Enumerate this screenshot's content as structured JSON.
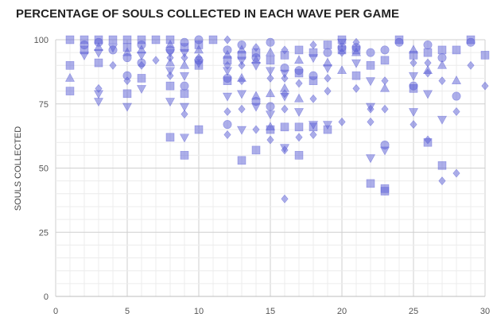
{
  "chart_data": {
    "type": "scatter",
    "title": "PERCENTAGE OF SOULS COLLECTED IN EACH WAVE PER GAME",
    "xlabel": "",
    "ylabel": "SOULS COLLECTED",
    "xlim": [
      0,
      30
    ],
    "ylim": [
      0,
      100
    ],
    "x_ticks": [
      0,
      5,
      10,
      15,
      20,
      25,
      30
    ],
    "y_ticks": [
      0,
      25,
      50,
      75,
      100
    ],
    "grid": true,
    "marker_color": "#5b5fd6",
    "marker_shapes": [
      "square",
      "circle",
      "triangle-up",
      "triangle-down",
      "diamond"
    ],
    "points": [
      {
        "x": 1,
        "y": 100,
        "shape": "square"
      },
      {
        "x": 1,
        "y": 90,
        "shape": "square"
      },
      {
        "x": 1,
        "y": 85,
        "shape": "triangle-up"
      },
      {
        "x": 1,
        "y": 80,
        "shape": "square"
      },
      {
        "x": 2,
        "y": 100,
        "shape": "square"
      },
      {
        "x": 2,
        "y": 98,
        "shape": "circle"
      },
      {
        "x": 2,
        "y": 96,
        "shape": "square"
      },
      {
        "x": 2,
        "y": 94,
        "shape": "triangle-down"
      },
      {
        "x": 3,
        "y": 100,
        "shape": "square"
      },
      {
        "x": 3,
        "y": 99,
        "shape": "circle"
      },
      {
        "x": 3,
        "y": 97,
        "shape": "triangle-up"
      },
      {
        "x": 3,
        "y": 95,
        "shape": "triangle-down"
      },
      {
        "x": 3,
        "y": 91,
        "shape": "square"
      },
      {
        "x": 3,
        "y": 81,
        "shape": "diamond"
      },
      {
        "x": 3,
        "y": 79,
        "shape": "triangle-down"
      },
      {
        "x": 3,
        "y": 76,
        "shape": "triangle-down"
      },
      {
        "x": 4,
        "y": 100,
        "shape": "square"
      },
      {
        "x": 4,
        "y": 97,
        "shape": "triangle-down"
      },
      {
        "x": 4,
        "y": 96,
        "shape": "circle"
      },
      {
        "x": 4,
        "y": 90,
        "shape": "diamond"
      },
      {
        "x": 5,
        "y": 100,
        "shape": "square"
      },
      {
        "x": 5,
        "y": 97,
        "shape": "square"
      },
      {
        "x": 5,
        "y": 95,
        "shape": "triangle-up"
      },
      {
        "x": 5,
        "y": 93,
        "shape": "circle"
      },
      {
        "x": 5,
        "y": 86,
        "shape": "circle"
      },
      {
        "x": 5,
        "y": 84,
        "shape": "diamond"
      },
      {
        "x": 5,
        "y": 79,
        "shape": "square"
      },
      {
        "x": 5,
        "y": 74,
        "shape": "triangle-down"
      },
      {
        "x": 6,
        "y": 100,
        "shape": "square"
      },
      {
        "x": 6,
        "y": 98,
        "shape": "circle"
      },
      {
        "x": 6,
        "y": 96,
        "shape": "triangle-up"
      },
      {
        "x": 6,
        "y": 94,
        "shape": "triangle-down"
      },
      {
        "x": 6,
        "y": 91,
        "shape": "circle"
      },
      {
        "x": 6,
        "y": 90,
        "shape": "diamond"
      },
      {
        "x": 6,
        "y": 85,
        "shape": "square"
      },
      {
        "x": 6,
        "y": 81,
        "shape": "triangle-down"
      },
      {
        "x": 7,
        "y": 100,
        "shape": "square"
      },
      {
        "x": 7,
        "y": 92,
        "shape": "diamond"
      },
      {
        "x": 8,
        "y": 100,
        "shape": "square"
      },
      {
        "x": 8,
        "y": 98,
        "shape": "triangle-up"
      },
      {
        "x": 8,
        "y": 96,
        "shape": "circle"
      },
      {
        "x": 8,
        "y": 95,
        "shape": "triangle-down"
      },
      {
        "x": 8,
        "y": 93,
        "shape": "diamond"
      },
      {
        "x": 8,
        "y": 91,
        "shape": "triangle-up"
      },
      {
        "x": 8,
        "y": 88,
        "shape": "triangle-down"
      },
      {
        "x": 8,
        "y": 86,
        "shape": "diamond"
      },
      {
        "x": 8,
        "y": 82,
        "shape": "square"
      },
      {
        "x": 8,
        "y": 76,
        "shape": "triangle-down"
      },
      {
        "x": 8,
        "y": 62,
        "shape": "square"
      },
      {
        "x": 9,
        "y": 99,
        "shape": "circle"
      },
      {
        "x": 9,
        "y": 97,
        "shape": "square"
      },
      {
        "x": 9,
        "y": 95,
        "shape": "triangle-down"
      },
      {
        "x": 9,
        "y": 93,
        "shape": "diamond"
      },
      {
        "x": 9,
        "y": 90,
        "shape": "triangle-up"
      },
      {
        "x": 9,
        "y": 86,
        "shape": "triangle-down"
      },
      {
        "x": 9,
        "y": 82,
        "shape": "circle"
      },
      {
        "x": 9,
        "y": 79,
        "shape": "square"
      },
      {
        "x": 9,
        "y": 74,
        "shape": "triangle-down"
      },
      {
        "x": 9,
        "y": 71,
        "shape": "diamond"
      },
      {
        "x": 9,
        "y": 62,
        "shape": "triangle-down"
      },
      {
        "x": 9,
        "y": 55,
        "shape": "square"
      },
      {
        "x": 10,
        "y": 100,
        "shape": "circle"
      },
      {
        "x": 10,
        "y": 98,
        "shape": "square"
      },
      {
        "x": 10,
        "y": 96,
        "shape": "triangle-up"
      },
      {
        "x": 10,
        "y": 93,
        "shape": "diamond"
      },
      {
        "x": 10,
        "y": 92,
        "shape": "circle"
      },
      {
        "x": 10,
        "y": 91,
        "shape": "triangle-down"
      },
      {
        "x": 10,
        "y": 90,
        "shape": "square"
      },
      {
        "x": 10,
        "y": 65,
        "shape": "square"
      },
      {
        "x": 11,
        "y": 100,
        "shape": "square"
      },
      {
        "x": 12,
        "y": 100,
        "shape": "diamond"
      },
      {
        "x": 12,
        "y": 96,
        "shape": "circle"
      },
      {
        "x": 12,
        "y": 94,
        "shape": "triangle-up"
      },
      {
        "x": 12,
        "y": 92,
        "shape": "square"
      },
      {
        "x": 12,
        "y": 90,
        "shape": "diamond"
      },
      {
        "x": 12,
        "y": 88,
        "shape": "triangle-down"
      },
      {
        "x": 12,
        "y": 85,
        "shape": "circle"
      },
      {
        "x": 12,
        "y": 84,
        "shape": "square"
      },
      {
        "x": 12,
        "y": 78,
        "shape": "triangle-down"
      },
      {
        "x": 12,
        "y": 72,
        "shape": "diamond"
      },
      {
        "x": 12,
        "y": 67,
        "shape": "circle"
      },
      {
        "x": 12,
        "y": 63,
        "shape": "diamond"
      },
      {
        "x": 13,
        "y": 98,
        "shape": "circle"
      },
      {
        "x": 13,
        "y": 96,
        "shape": "triangle-up"
      },
      {
        "x": 13,
        "y": 94,
        "shape": "square"
      },
      {
        "x": 13,
        "y": 92,
        "shape": "triangle-down"
      },
      {
        "x": 13,
        "y": 90,
        "shape": "diamond"
      },
      {
        "x": 13,
        "y": 85,
        "shape": "triangle-up"
      },
      {
        "x": 13,
        "y": 84,
        "shape": "diamond"
      },
      {
        "x": 13,
        "y": 79,
        "shape": "triangle-down"
      },
      {
        "x": 13,
        "y": 73,
        "shape": "diamond"
      },
      {
        "x": 13,
        "y": 65,
        "shape": "triangle-down"
      },
      {
        "x": 13,
        "y": 53,
        "shape": "square"
      },
      {
        "x": 14,
        "y": 97,
        "shape": "diamond"
      },
      {
        "x": 14,
        "y": 95,
        "shape": "square"
      },
      {
        "x": 14,
        "y": 93,
        "shape": "circle"
      },
      {
        "x": 14,
        "y": 92,
        "shape": "triangle-up"
      },
      {
        "x": 14,
        "y": 90,
        "shape": "triangle-down"
      },
      {
        "x": 14,
        "y": 78,
        "shape": "triangle-up"
      },
      {
        "x": 14,
        "y": 76,
        "shape": "circle"
      },
      {
        "x": 14,
        "y": 74,
        "shape": "triangle-down"
      },
      {
        "x": 14,
        "y": 65,
        "shape": "diamond"
      },
      {
        "x": 14,
        "y": 57,
        "shape": "square"
      },
      {
        "x": 15,
        "y": 99,
        "shape": "circle"
      },
      {
        "x": 15,
        "y": 95,
        "shape": "triangle-up"
      },
      {
        "x": 15,
        "y": 92,
        "shape": "square"
      },
      {
        "x": 15,
        "y": 88,
        "shape": "triangle-down"
      },
      {
        "x": 15,
        "y": 85,
        "shape": "diamond"
      },
      {
        "x": 15,
        "y": 79,
        "shape": "triangle-up"
      },
      {
        "x": 15,
        "y": 74,
        "shape": "circle"
      },
      {
        "x": 15,
        "y": 71,
        "shape": "triangle-down"
      },
      {
        "x": 15,
        "y": 66,
        "shape": "triangle-up"
      },
      {
        "x": 15,
        "y": 65,
        "shape": "square"
      },
      {
        "x": 15,
        "y": 61,
        "shape": "diamond"
      },
      {
        "x": 16,
        "y": 96,
        "shape": "diamond"
      },
      {
        "x": 16,
        "y": 94,
        "shape": "square"
      },
      {
        "x": 16,
        "y": 89,
        "shape": "circle"
      },
      {
        "x": 16,
        "y": 87,
        "shape": "triangle-down"
      },
      {
        "x": 16,
        "y": 85,
        "shape": "diamond"
      },
      {
        "x": 16,
        "y": 81,
        "shape": "triangle-up"
      },
      {
        "x": 16,
        "y": 79,
        "shape": "diamond"
      },
      {
        "x": 16,
        "y": 78,
        "shape": "triangle-down"
      },
      {
        "x": 16,
        "y": 73,
        "shape": "diamond"
      },
      {
        "x": 16,
        "y": 66,
        "shape": "square"
      },
      {
        "x": 16,
        "y": 58,
        "shape": "triangle-down"
      },
      {
        "x": 16,
        "y": 57,
        "shape": "diamond"
      },
      {
        "x": 16,
        "y": 38,
        "shape": "diamond"
      },
      {
        "x": 17,
        "y": 96,
        "shape": "square"
      },
      {
        "x": 17,
        "y": 92,
        "shape": "triangle-up"
      },
      {
        "x": 17,
        "y": 88,
        "shape": "circle"
      },
      {
        "x": 17,
        "y": 87,
        "shape": "square"
      },
      {
        "x": 17,
        "y": 83,
        "shape": "diamond"
      },
      {
        "x": 17,
        "y": 77,
        "shape": "triangle-up"
      },
      {
        "x": 17,
        "y": 72,
        "shape": "triangle-down"
      },
      {
        "x": 17,
        "y": 66,
        "shape": "square"
      },
      {
        "x": 17,
        "y": 62,
        "shape": "diamond"
      },
      {
        "x": 17,
        "y": 55,
        "shape": "square"
      },
      {
        "x": 18,
        "y": 98,
        "shape": "diamond"
      },
      {
        "x": 18,
        "y": 95,
        "shape": "square"
      },
      {
        "x": 18,
        "y": 93,
        "shape": "triangle-down"
      },
      {
        "x": 18,
        "y": 86,
        "shape": "circle"
      },
      {
        "x": 18,
        "y": 84,
        "shape": "square"
      },
      {
        "x": 18,
        "y": 77,
        "shape": "diamond"
      },
      {
        "x": 18,
        "y": 67,
        "shape": "triangle-down"
      },
      {
        "x": 18,
        "y": 66,
        "shape": "square"
      },
      {
        "x": 18,
        "y": 63,
        "shape": "diamond"
      },
      {
        "x": 19,
        "y": 98,
        "shape": "square"
      },
      {
        "x": 19,
        "y": 95,
        "shape": "circle"
      },
      {
        "x": 19,
        "y": 91,
        "shape": "triangle-up"
      },
      {
        "x": 19,
        "y": 89,
        "shape": "triangle-down"
      },
      {
        "x": 19,
        "y": 85,
        "shape": "diamond"
      },
      {
        "x": 19,
        "y": 80,
        "shape": "diamond"
      },
      {
        "x": 19,
        "y": 67,
        "shape": "triangle-down"
      },
      {
        "x": 19,
        "y": 65,
        "shape": "square"
      },
      {
        "x": 20,
        "y": 100,
        "shape": "square"
      },
      {
        "x": 20,
        "y": 99,
        "shape": "triangle-down"
      },
      {
        "x": 20,
        "y": 97,
        "shape": "circle"
      },
      {
        "x": 20,
        "y": 96,
        "shape": "square"
      },
      {
        "x": 20,
        "y": 95,
        "shape": "diamond"
      },
      {
        "x": 20,
        "y": 88,
        "shape": "triangle-up"
      },
      {
        "x": 20,
        "y": 68,
        "shape": "diamond"
      },
      {
        "x": 21,
        "y": 99,
        "shape": "diamond"
      },
      {
        "x": 21,
        "y": 97,
        "shape": "circle"
      },
      {
        "x": 21,
        "y": 96,
        "shape": "square"
      },
      {
        "x": 21,
        "y": 95,
        "shape": "triangle-up"
      },
      {
        "x": 21,
        "y": 91,
        "shape": "triangle-down"
      },
      {
        "x": 21,
        "y": 86,
        "shape": "square"
      },
      {
        "x": 21,
        "y": 81,
        "shape": "diamond"
      },
      {
        "x": 22,
        "y": 95,
        "shape": "circle"
      },
      {
        "x": 22,
        "y": 90,
        "shape": "square"
      },
      {
        "x": 22,
        "y": 84,
        "shape": "triangle-down"
      },
      {
        "x": 22,
        "y": 74,
        "shape": "triangle-down"
      },
      {
        "x": 22,
        "y": 73,
        "shape": "diamond"
      },
      {
        "x": 22,
        "y": 68,
        "shape": "diamond"
      },
      {
        "x": 22,
        "y": 54,
        "shape": "triangle-down"
      },
      {
        "x": 22,
        "y": 44,
        "shape": "square"
      },
      {
        "x": 23,
        "y": 96,
        "shape": "circle"
      },
      {
        "x": 23,
        "y": 92,
        "shape": "square"
      },
      {
        "x": 23,
        "y": 84,
        "shape": "diamond"
      },
      {
        "x": 23,
        "y": 81,
        "shape": "triangle-up"
      },
      {
        "x": 23,
        "y": 73,
        "shape": "diamond"
      },
      {
        "x": 23,
        "y": 59,
        "shape": "circle"
      },
      {
        "x": 23,
        "y": 57,
        "shape": "triangle-down"
      },
      {
        "x": 23,
        "y": 42,
        "shape": "square"
      },
      {
        "x": 23,
        "y": 41,
        "shape": "square"
      },
      {
        "x": 24,
        "y": 100,
        "shape": "square"
      },
      {
        "x": 24,
        "y": 99,
        "shape": "circle"
      },
      {
        "x": 25,
        "y": 96,
        "shape": "triangle-up"
      },
      {
        "x": 25,
        "y": 94,
        "shape": "square"
      },
      {
        "x": 25,
        "y": 91,
        "shape": "diamond"
      },
      {
        "x": 25,
        "y": 86,
        "shape": "triangle-down"
      },
      {
        "x": 25,
        "y": 82,
        "shape": "circle"
      },
      {
        "x": 25,
        "y": 81,
        "shape": "square"
      },
      {
        "x": 25,
        "y": 72,
        "shape": "triangle-down"
      },
      {
        "x": 25,
        "y": 67,
        "shape": "diamond"
      },
      {
        "x": 26,
        "y": 98,
        "shape": "circle"
      },
      {
        "x": 26,
        "y": 95,
        "shape": "square"
      },
      {
        "x": 26,
        "y": 91,
        "shape": "diamond"
      },
      {
        "x": 26,
        "y": 88,
        "shape": "triangle-up"
      },
      {
        "x": 26,
        "y": 87,
        "shape": "diamond"
      },
      {
        "x": 26,
        "y": 79,
        "shape": "triangle-down"
      },
      {
        "x": 26,
        "y": 61,
        "shape": "diamond"
      },
      {
        "x": 26,
        "y": 60,
        "shape": "square"
      },
      {
        "x": 27,
        "y": 96,
        "shape": "square"
      },
      {
        "x": 27,
        "y": 93,
        "shape": "circle"
      },
      {
        "x": 27,
        "y": 90,
        "shape": "triangle-up"
      },
      {
        "x": 27,
        "y": 84,
        "shape": "diamond"
      },
      {
        "x": 27,
        "y": 69,
        "shape": "triangle-down"
      },
      {
        "x": 27,
        "y": 51,
        "shape": "square"
      },
      {
        "x": 27,
        "y": 45,
        "shape": "diamond"
      },
      {
        "x": 28,
        "y": 96,
        "shape": "square"
      },
      {
        "x": 28,
        "y": 84,
        "shape": "triangle-up"
      },
      {
        "x": 28,
        "y": 78,
        "shape": "circle"
      },
      {
        "x": 28,
        "y": 72,
        "shape": "diamond"
      },
      {
        "x": 28,
        "y": 48,
        "shape": "diamond"
      },
      {
        "x": 29,
        "y": 100,
        "shape": "square"
      },
      {
        "x": 29,
        "y": 99,
        "shape": "circle"
      },
      {
        "x": 29,
        "y": 90,
        "shape": "diamond"
      },
      {
        "x": 30,
        "y": 94,
        "shape": "square"
      },
      {
        "x": 30,
        "y": 82,
        "shape": "diamond"
      }
    ]
  }
}
